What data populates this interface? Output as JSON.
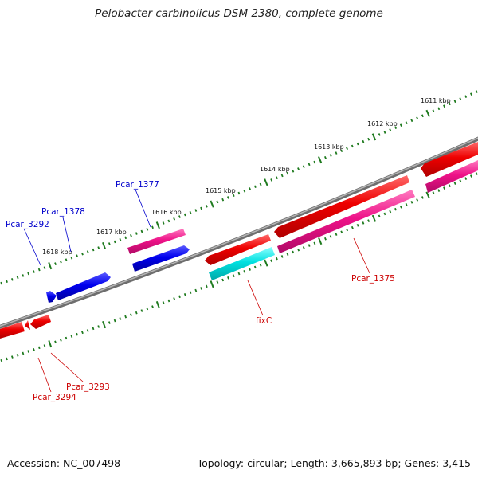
{
  "title": "Pelobacter carbinolicus DSM 2380, complete genome",
  "footer": {
    "accession": "Accession: NC_007498",
    "summary": "Topology: circular; Length: 3,665,893 bp; Genes: 3,415"
  },
  "colors": {
    "backbone": "#7a7a7a",
    "tick": "#1e7a1e",
    "blue": "#0000ee",
    "red": "#ee0000",
    "pink": "#ee1288",
    "cyan": "#00e0e0",
    "label_blue": "#0000cc",
    "label_red": "#cc0000"
  },
  "ruler_labels": [
    "1611 kbp",
    "1612 kbp",
    "1613 kbp",
    "1614 kbp",
    "1615 kbp",
    "1616 kbp",
    "1617 kbp",
    "1618 kbp"
  ],
  "gene_labels": {
    "pcar_1377": "Pcar_1377",
    "pcar_1378": "Pcar_1378",
    "pcar_3292": "Pcar_3292",
    "pcar_1375": "Pcar_1375",
    "fixc": "fixC",
    "pcar_3293": "Pcar_3293",
    "pcar_3294": "Pcar_3294"
  }
}
